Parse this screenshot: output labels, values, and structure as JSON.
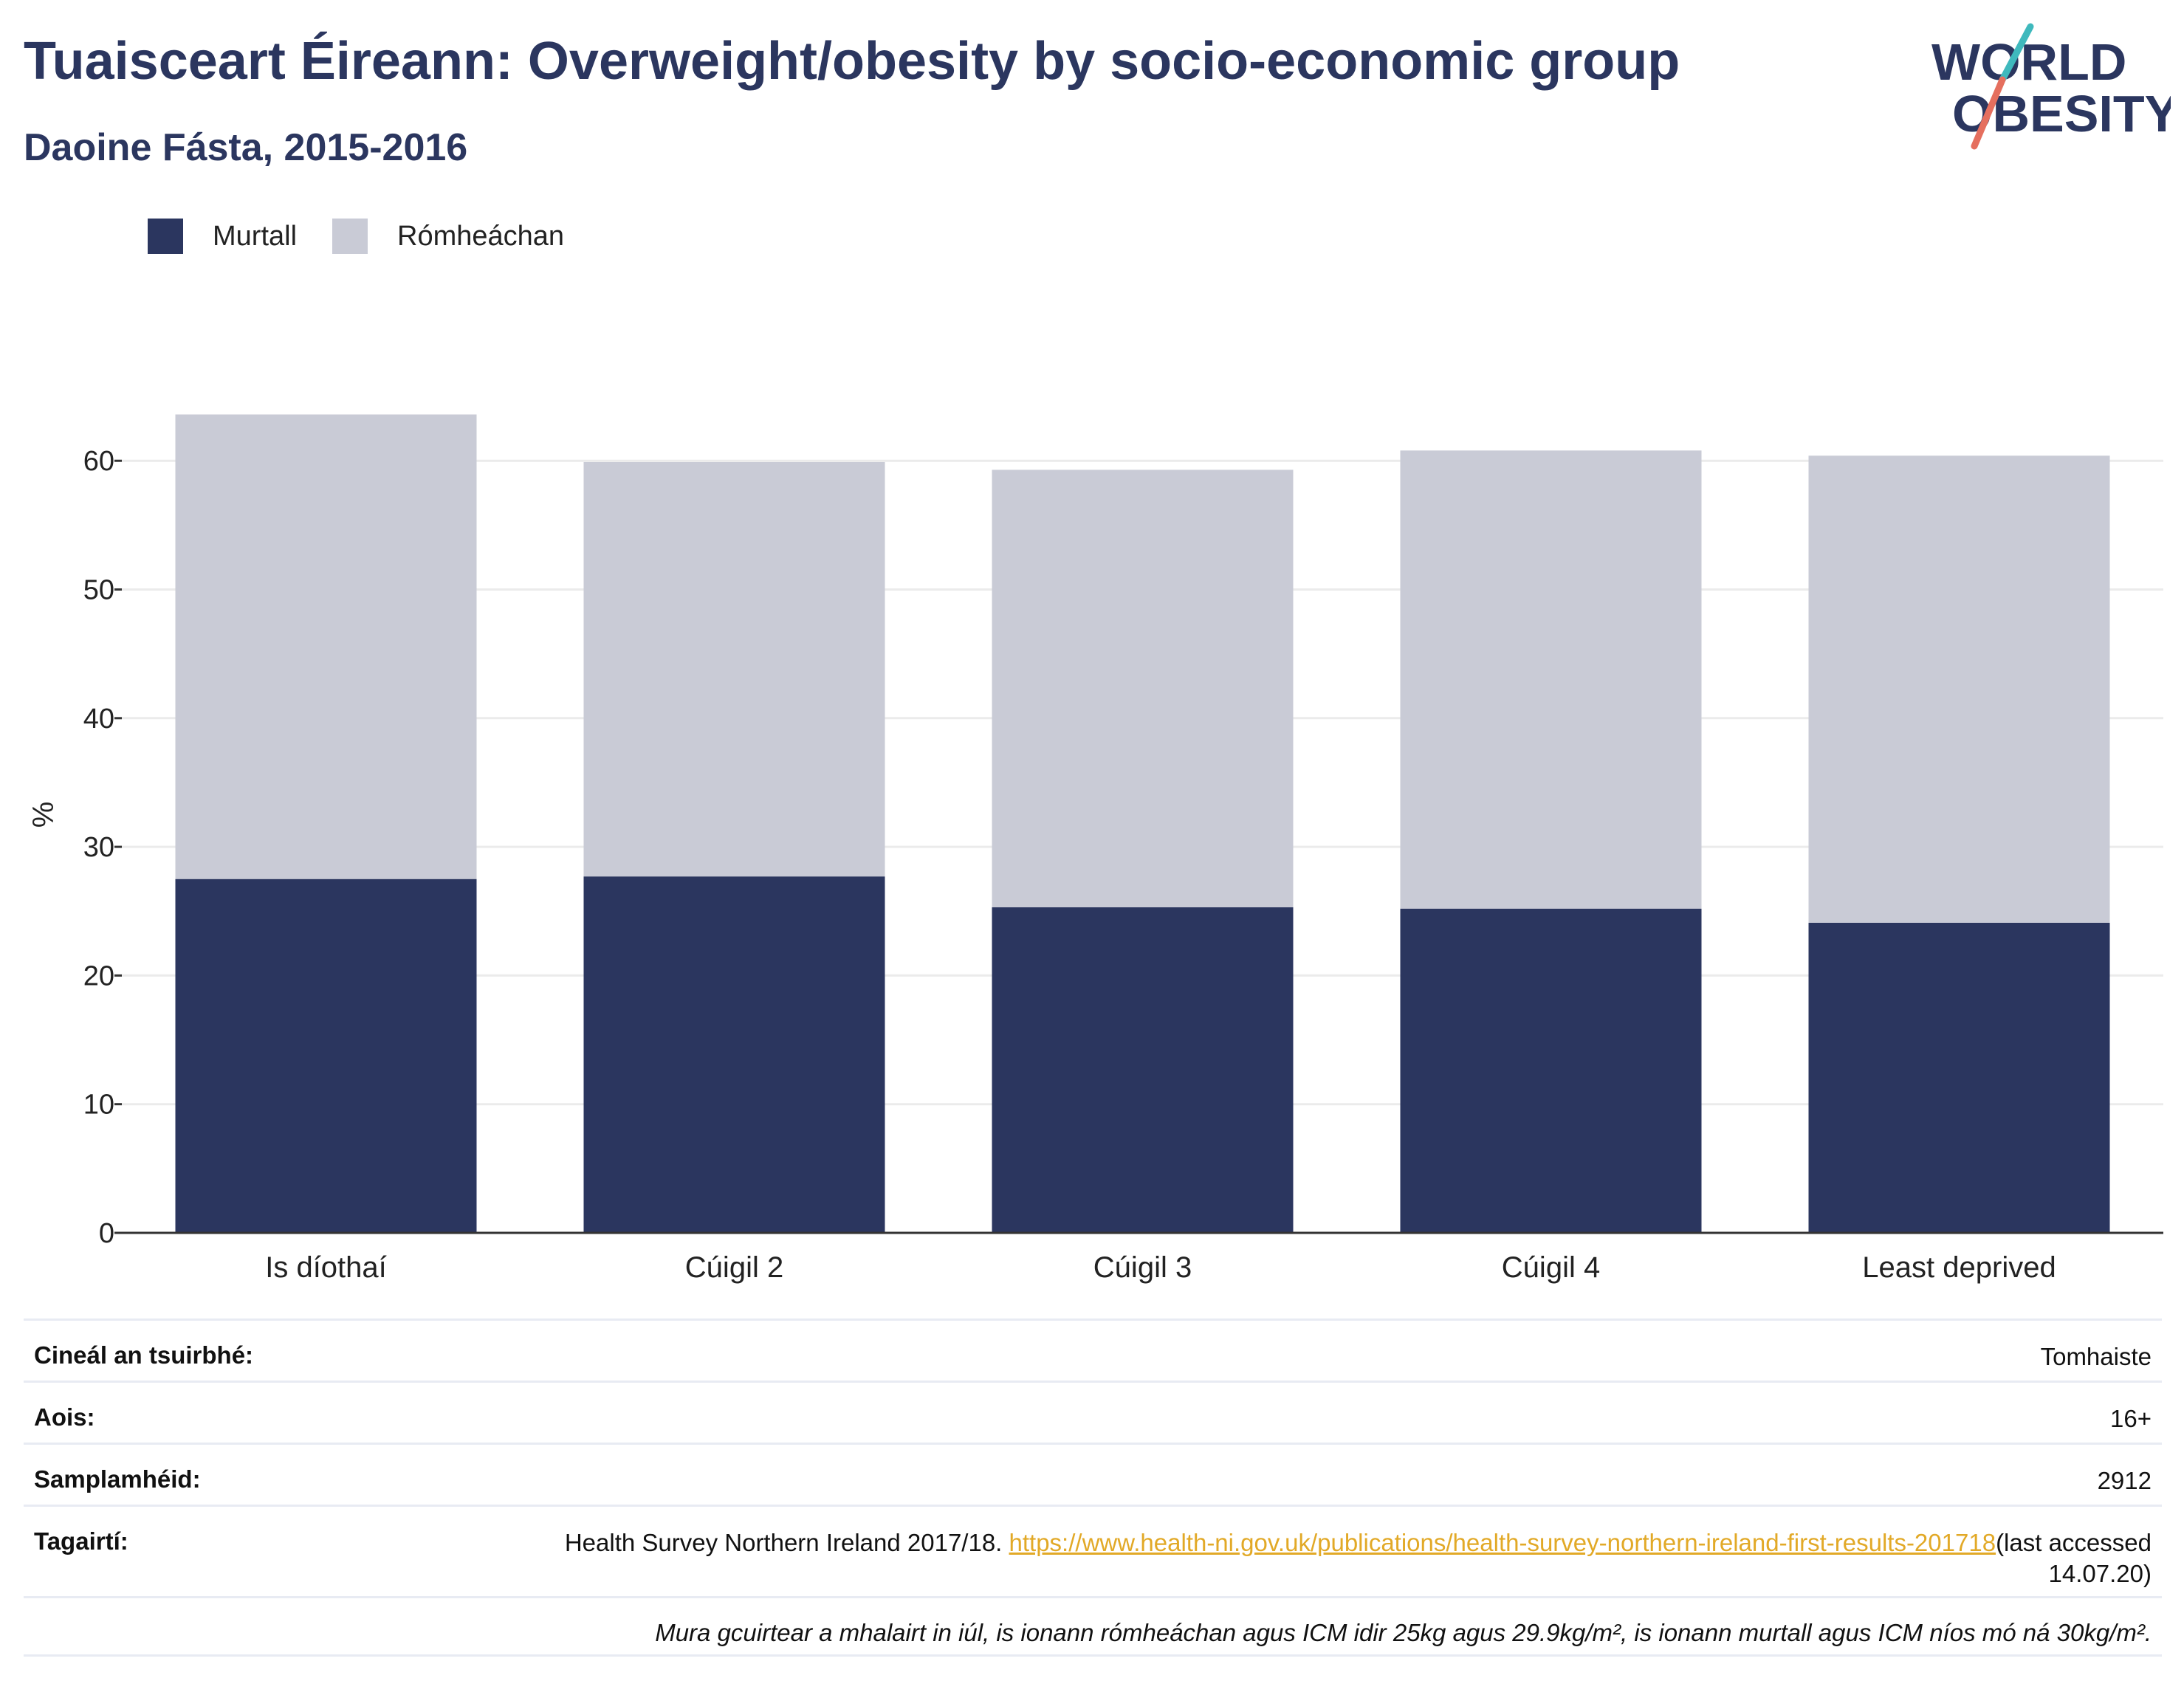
{
  "header": {
    "title": "Tuaisceart Éireann: Overweight/obesity by socio-economic group",
    "subtitle": "Daoine Fásta, 2015-2016",
    "logo_line1": "WORLD",
    "logo_line2": "OBESITY"
  },
  "legend": [
    {
      "label": "Murtall",
      "color": "#2b365f"
    },
    {
      "label": "Rómheáchan",
      "color": "#c9cbd6"
    }
  ],
  "chart_data": {
    "type": "bar",
    "stacked": true,
    "categories": [
      "Is díothaí",
      "Cúigil 2",
      "Cúigil 3",
      "Cúigil 4",
      "Least deprived"
    ],
    "series": [
      {
        "name": "Murtall",
        "color": "#2b365f",
        "values": [
          27.5,
          27.7,
          25.3,
          25.2,
          24.1
        ]
      },
      {
        "name": "Rómheáchan",
        "color": "#c9cbd6",
        "values": [
          36.1,
          32.2,
          34.0,
          35.6,
          36.3
        ]
      }
    ],
    "ylabel": "%",
    "ylim": [
      0,
      65
    ],
    "yticks": [
      0,
      10,
      20,
      30,
      40,
      50,
      60
    ],
    "grid": true,
    "legend_position": "top-left"
  },
  "info": {
    "survey_type_label": "Cineál an tsuirbhé:",
    "survey_type_value": "Tomhaiste",
    "age_label": "Aois:",
    "age_value": "16+",
    "sample_label": "Samplamhéid:",
    "sample_value": "2912",
    "refs_label": "Tagairtí:",
    "refs_text": "Health Survey Northern Ireland 2017/18. ",
    "refs_link": "https://www.health-ni.gov.uk/publications/health-survey-northern-ireland-first-results-201718",
    "refs_suffix": "(last accessed 14.07.20)",
    "note": "Mura gcuirtear a mhalairt in iúl, is ionann rómheáchan agus ICM idir 25kg agus 29.9kg/m², is ionann murtall agus ICM níos mó ná 30kg/m²."
  }
}
